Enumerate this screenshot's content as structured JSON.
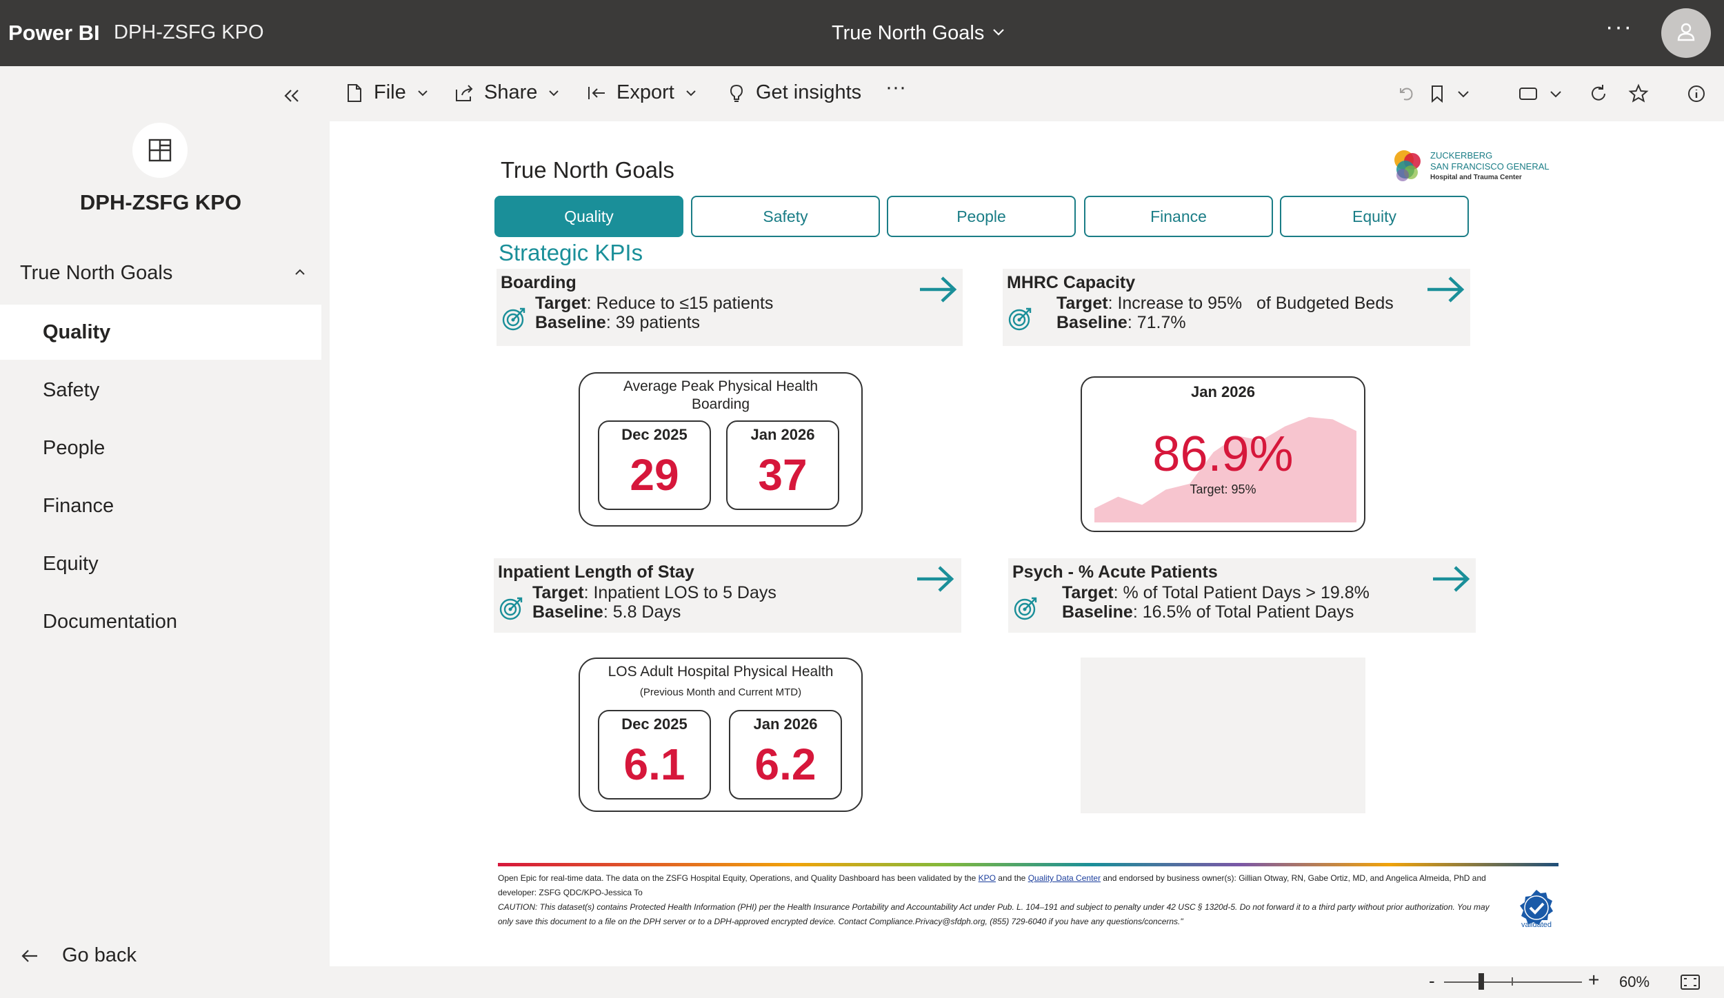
{
  "app": {
    "brand": "Power BI",
    "workspace": "DPH-ZSFG KPO",
    "report_title": "True North Goals",
    "more": "···"
  },
  "sidebar": {
    "app_name": "DPH-ZSFG KPO",
    "section": "True North Goals",
    "items": [
      {
        "label": "Quality"
      },
      {
        "label": "Safety"
      },
      {
        "label": "People"
      },
      {
        "label": "Finance"
      },
      {
        "label": "Equity"
      },
      {
        "label": "Documentation"
      }
    ],
    "go_back": "Go back"
  },
  "toolbar": {
    "file": "File",
    "share": "Share",
    "export": "Export",
    "insights": "Get insights",
    "more": "···"
  },
  "report": {
    "page_title": "True North Goals",
    "logo": {
      "line1": "ZUCKERBERG",
      "line2": "SAN FRANCISCO GENERAL",
      "line3": "Hospital and Trauma Center"
    },
    "tabs": [
      "Quality",
      "Safety",
      "People",
      "Finance",
      "Equity"
    ],
    "section_title": "Strategic KPIs",
    "boarding": {
      "name": "Boarding",
      "target_label": "Target",
      "target_text": ": Reduce to ≤15 patients",
      "baseline_label": "Baseline",
      "baseline_text": ": 39 patients",
      "card_title": "Average Peak Physical Health Boarding",
      "prev_label": "Dec 2025",
      "prev_value": "29",
      "curr_label": "Jan 2026",
      "curr_value": "37"
    },
    "mhrc": {
      "name": "MHRC Capacity",
      "target_label": "Target",
      "target_text": ": Increase to 95%   of Budgeted Beds",
      "baseline_label": "Baseline",
      "baseline_text": ": 71.7%",
      "date": "Jan 2026",
      "value": "86.9%",
      "target_note": "Target: 95%",
      "trend": [
        0.12,
        0.22,
        0.15,
        0.28,
        0.33,
        0.6,
        0.74,
        0.7,
        0.82,
        0.9,
        0.88,
        0.78
      ],
      "area_color": "#f7c5cf"
    },
    "los": {
      "name": "Inpatient Length of Stay",
      "target_label": "Target",
      "target_text": ": Inpatient LOS to 5 Days",
      "baseline_label": "Baseline",
      "baseline_text": ": 5.8 Days",
      "card_title": "LOS Adult Hospital Physical Health",
      "card_subtitle": "(Previous Month and Current MTD)",
      "prev_label": "Dec 2025",
      "prev_value": "6.1",
      "curr_label": "Jan 2026",
      "curr_value": "6.2"
    },
    "psych": {
      "name": "Psych - % Acute Patients",
      "target_label": "Target",
      "target_text": ": % of Total Patient Days > 19.8%",
      "baseline_label": "Baseline",
      "baseline_text": ": 16.5% of Total Patient Days"
    },
    "footer": {
      "p1a": "Open Epic for real-time data. The data on the ZSFG Hospital Equity, Operations, and Quality Dashboard has been validated by the ",
      "link1": "KPO",
      "p1b": " and the ",
      "link2": "Quality Data Center",
      "p1c": " and endorsed by business owner(s): Gillian Otway, RN, Gabe Ortiz, MD, and Angelica Almeida, PhD and developer: ZSFG QDC/KPO-Jessica To",
      "caution": "CAUTION:  This dataset(s) contains Protected Health Information (PHI) per the Health Insurance Portability and Accountability Act under Pub. L. 104–191 and subject to penalty under 42 USC § 1320d-5. Do not forward it to a third party without prior authorization. You may only save this document to a file on the DPH server or to a DPH-approved encrypted device.  Contact Compliance.Privacy@sfdph.org, (855) 729-6040 if you have any questions/concerns.\"",
      "badge": "validated"
    }
  },
  "statusbar": {
    "zoom_minus": "-",
    "zoom_plus": "+",
    "zoom_level": "60%"
  },
  "colors": {
    "accent": "#1a8f99",
    "value_red": "#d6173b",
    "topbar": "#3b3a39"
  }
}
